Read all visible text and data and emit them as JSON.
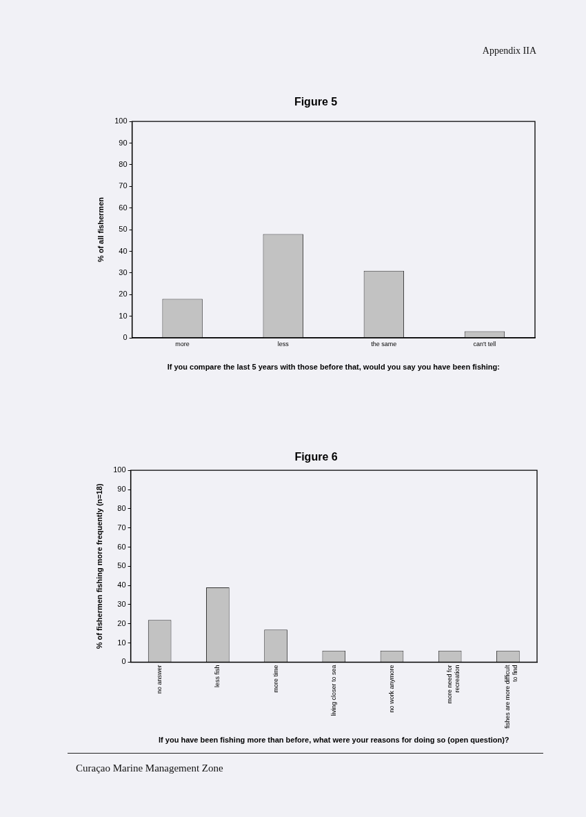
{
  "chart_data": [
    {
      "type": "bar",
      "title": "Figure 5",
      "ylabel": "% of all fishermen",
      "xlabel": "If you compare the last 5 years with those before that, would you say you have been fishing:",
      "categories": [
        "more",
        "less",
        "the same",
        "can't tell"
      ],
      "values": [
        18,
        48,
        31,
        3
      ],
      "color": "#c2c2c2",
      "ylim": [
        0,
        100
      ],
      "yticks": [
        0,
        10,
        20,
        30,
        40,
        50,
        60,
        70,
        80,
        90,
        100
      ],
      "annotations": [
        "Appendix IIA"
      ]
    },
    {
      "type": "bar",
      "title": "Figure 6",
      "ylabel": "% of fishermen fishing more frequently (n=18)",
      "xlabel": "If you have been fishing more than before, what were your reasons for doing so (open question)?",
      "categories": [
        "no answer",
        "less fish",
        "more time",
        "living closer to sea",
        "no work anymore",
        "more need for recreation",
        "fishes are more difficult to find"
      ],
      "values": [
        22,
        39,
        17,
        6,
        6,
        6,
        6
      ],
      "color": "#c2c2c2",
      "ylim": [
        0,
        100
      ],
      "yticks": [
        0,
        10,
        20,
        30,
        40,
        50,
        60,
        70,
        80,
        90,
        100
      ],
      "annotations": [
        "Curaçao Marine Management Zone"
      ]
    }
  ]
}
